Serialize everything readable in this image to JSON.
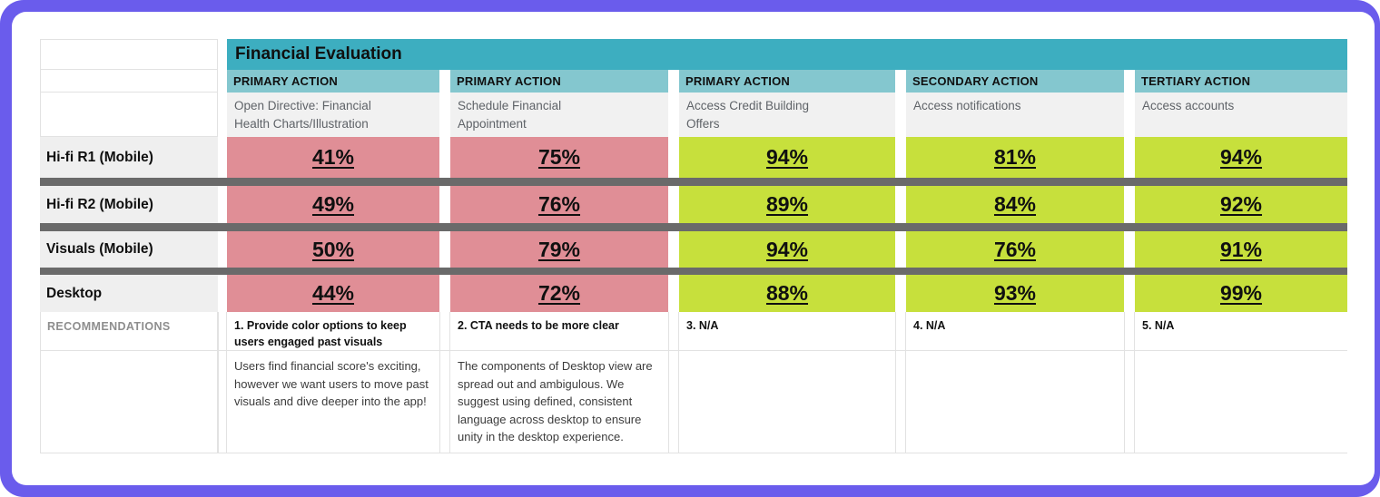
{
  "sheet": {
    "title": "Financial Evaluation",
    "columns": [
      {
        "type_label": "PRIMARY ACTION",
        "description": "Open Directive: Financial Health Charts/Illustration",
        "cell_color": "#E08E96"
      },
      {
        "type_label": "PRIMARY ACTION",
        "description": "Schedule Financial Appointment",
        "cell_color": "#E08E96"
      },
      {
        "type_label": "PRIMARY ACTION",
        "description": "Access Credit Building Offers",
        "cell_color": "#C7E03C"
      },
      {
        "type_label": "SECONDARY ACTION",
        "description": "Access notifications",
        "cell_color": "#C7E03C"
      },
      {
        "type_label": "TERTIARY ACTION",
        "description": "Access accounts",
        "cell_color": "#C7E03C"
      }
    ],
    "rows": [
      {
        "label": "Hi-fi R1 (Mobile)",
        "values": [
          "41%",
          "75%",
          "94%",
          "81%",
          "94%"
        ]
      },
      {
        "label": "Hi-fi R2 (Mobile)",
        "values": [
          "49%",
          "76%",
          "89%",
          "84%",
          "92%"
        ]
      },
      {
        "label": "Visuals (Mobile)",
        "values": [
          "50%",
          "79%",
          "94%",
          "76%",
          "91%"
        ]
      },
      {
        "label": "Desktop",
        "values": [
          "44%",
          "72%",
          "88%",
          "93%",
          "99%"
        ]
      }
    ],
    "recommendations": {
      "label": "RECOMMENDATIONS",
      "items": [
        {
          "headline": "1. Provide color options to keep users engaged past visuals",
          "body": "Users find financial score's exciting, however we want users to move past visuals and dive deeper into the app!"
        },
        {
          "headline": "2. CTA needs to be more clear",
          "body": "The components of Desktop view are spread out and ambigulous. We suggest using defined, consistent language across desktop to ensure unity in the desktop experience."
        },
        {
          "headline": "3. N/A",
          "body": ""
        },
        {
          "headline": "4. N/A",
          "body": ""
        },
        {
          "headline": "5. N/A",
          "body": ""
        }
      ]
    },
    "colors": {
      "frame_accent": "#6A5CEC",
      "title_bg": "#3DAEC0",
      "subheader_bg": "#84C7CF",
      "negative_cell": "#E08E96",
      "positive_cell": "#C7E03C",
      "separator": "#6A6A6A",
      "row_label_bg": "#EFEFEF"
    }
  }
}
